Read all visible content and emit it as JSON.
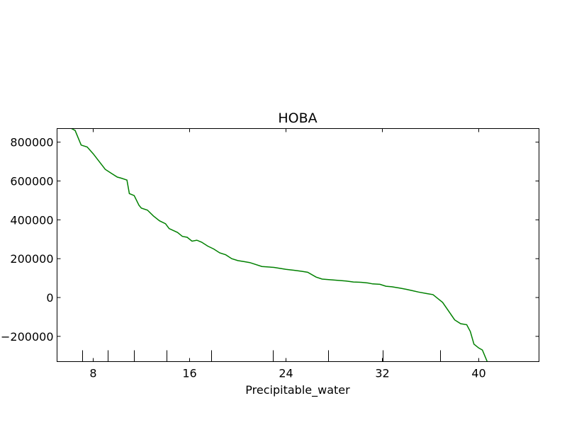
{
  "chart_data": {
    "type": "line",
    "title": "HOBA",
    "xlabel": "Precipitable_water",
    "ylabel": "",
    "xlim": [
      5,
      45
    ],
    "ylim": [
      -330000,
      870000
    ],
    "x_ticks": [
      "8",
      "16",
      "24",
      "32",
      "40"
    ],
    "y_ticks": [
      "800000",
      "600000",
      "400000",
      "200000",
      "0",
      "-200000"
    ],
    "grid": false,
    "rug": [
      7.1,
      9.2,
      11.4,
      14.1,
      17.8,
      22.9,
      27.5,
      32.0,
      36.8
    ],
    "series": [
      {
        "name": "",
        "color": "#008000",
        "x": [
          6.2,
          6.5,
          7.0,
          7.5,
          8.0,
          8.5,
          9.0,
          9.5,
          10.0,
          10.3,
          10.8,
          11.0,
          11.4,
          11.8,
          12.0,
          12.5,
          13.0,
          13.5,
          14.0,
          14.3,
          15.0,
          15.4,
          15.8,
          16.2,
          16.6,
          17.0,
          17.5,
          18.0,
          18.5,
          19.0,
          19.5,
          20.0,
          20.5,
          21.0,
          22.0,
          23.0,
          24.0,
          24.7,
          25.3,
          25.8,
          26.5,
          27.0,
          28.0,
          29.0,
          29.6,
          30.3,
          30.8,
          31.2,
          31.8,
          32.3,
          32.8,
          33.5,
          34.0,
          34.5,
          35.0,
          35.7,
          36.2,
          36.6,
          37.0,
          37.5,
          38.0,
          38.5,
          39.0,
          39.3,
          39.6,
          40.0,
          40.3,
          40.7
        ],
        "y": [
          870000,
          860000,
          785000,
          775000,
          740000,
          700000,
          660000,
          640000,
          620000,
          615000,
          605000,
          535000,
          525000,
          475000,
          460000,
          450000,
          420000,
          395000,
          380000,
          355000,
          335000,
          315000,
          310000,
          290000,
          295000,
          285000,
          265000,
          250000,
          230000,
          220000,
          200000,
          190000,
          185000,
          180000,
          160000,
          155000,
          145000,
          140000,
          135000,
          130000,
          105000,
          95000,
          90000,
          85000,
          80000,
          78000,
          75000,
          70000,
          68000,
          58000,
          55000,
          48000,
          42000,
          35000,
          28000,
          20000,
          15000,
          -5000,
          -25000,
          -70000,
          -115000,
          -135000,
          -140000,
          -175000,
          -240000,
          -260000,
          -270000,
          -330000
        ]
      }
    ]
  }
}
